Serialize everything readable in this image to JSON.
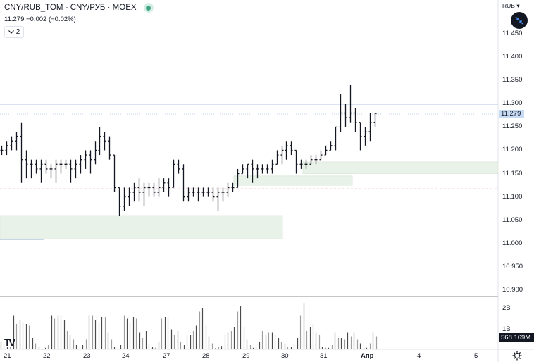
{
  "header": {
    "title": "CNY/RUB_TOM - CNY/РУБ · MOEX",
    "price": "11.279",
    "change": "−0.002 (−0.02%)",
    "collapse_count": "2"
  },
  "price_scale": {
    "currency": "RUB",
    "labels": [
      "11.450",
      "11.400",
      "11.350",
      "11.300",
      "11.250",
      "11.200",
      "11.150",
      "11.100",
      "11.050",
      "11.000",
      "10.950",
      "10.900"
    ],
    "current_price": "11.279"
  },
  "volume_scale": {
    "labels": [
      "2B",
      "1B"
    ],
    "current_volume": "568.169M"
  },
  "time_scale": {
    "labels": [
      "21",
      "22",
      "23",
      "24",
      "27",
      "28",
      "29",
      "30",
      "31",
      "Апр",
      "4",
      "5"
    ]
  },
  "icons": {
    "autofit": "autoscale-arrows-icon",
    "settings": "gear-icon",
    "logo": "TV"
  },
  "colors": {
    "bar": "#131722",
    "zone": "#e9f2e8",
    "current_price_line": "#b2c6e0",
    "status_dot": "#42a382",
    "volume_dark": "#4a4a4a",
    "volume_light": "#9e9e9e"
  },
  "chart_data": [
    {
      "type": "ohlc",
      "title": "CNY/RUB_TOM - CNY/РУБ · MOEX",
      "xlabel": "",
      "ylabel": "RUB",
      "ylim": [
        10.9,
        11.45
      ],
      "x": [
        "21",
        "22",
        "23",
        "24",
        "27",
        "28",
        "29",
        "30",
        "31",
        "Апр",
        "4",
        "5"
      ],
      "last_price": 11.279,
      "change": -0.002,
      "change_pct": -0.02,
      "zones": [
        {
          "from": 11.01,
          "to": 11.06,
          "x_start": "21",
          "x_end": "29.8"
        },
        {
          "from": 11.125,
          "to": 11.145,
          "x_start": "28.6",
          "x_end": "31.2"
        },
        {
          "from": 11.15,
          "to": 11.175,
          "x_start": "30.4",
          "x_end": "5"
        }
      ],
      "series": [
        {
          "name": "price",
          "values": [
            [
              11.2,
              11.21,
              11.19,
              11.2
            ],
            [
              11.2,
              11.22,
              11.19,
              11.21
            ],
            [
              11.21,
              11.23,
              11.2,
              11.22
            ],
            [
              11.22,
              11.24,
              11.2,
              11.23
            ],
            [
              11.23,
              11.26,
              11.13,
              11.18
            ],
            [
              11.18,
              11.2,
              11.14,
              11.17
            ],
            [
              11.17,
              11.18,
              11.14,
              11.17
            ],
            [
              11.17,
              11.18,
              11.15,
              11.16
            ],
            [
              11.16,
              11.18,
              11.13,
              11.17
            ],
            [
              11.17,
              11.18,
              11.15,
              11.16
            ],
            [
              11.16,
              11.17,
              11.14,
              11.16
            ],
            [
              11.16,
              11.18,
              11.13,
              11.17
            ],
            [
              11.17,
              11.18,
              11.15,
              11.17
            ],
            [
              11.17,
              11.18,
              11.16,
              11.17
            ],
            [
              11.17,
              11.18,
              11.13,
              11.16
            ],
            [
              11.16,
              11.18,
              11.14,
              11.17
            ],
            [
              11.17,
              11.19,
              11.15,
              11.18
            ],
            [
              11.18,
              11.2,
              11.16,
              11.19
            ],
            [
              11.19,
              11.2,
              11.15,
              11.18
            ],
            [
              11.18,
              11.22,
              11.17,
              11.2
            ],
            [
              11.2,
              11.25,
              11.19,
              11.23
            ],
            [
              11.23,
              11.24,
              11.2,
              11.22
            ],
            [
              11.22,
              11.23,
              11.18,
              11.19
            ],
            [
              11.19,
              11.19,
              11.11,
              11.12
            ],
            [
              11.12,
              11.12,
              11.06,
              11.08
            ],
            [
              11.08,
              11.12,
              11.07,
              11.1
            ],
            [
              11.1,
              11.12,
              11.08,
              11.11
            ],
            [
              11.11,
              11.13,
              11.09,
              11.12
            ],
            [
              11.12,
              11.14,
              11.09,
              11.11
            ],
            [
              11.11,
              11.13,
              11.08,
              11.12
            ],
            [
              11.12,
              11.13,
              11.1,
              11.12
            ],
            [
              11.12,
              11.13,
              11.1,
              11.11
            ],
            [
              11.11,
              11.14,
              11.1,
              11.12
            ],
            [
              11.12,
              11.14,
              11.11,
              11.13
            ],
            [
              11.13,
              11.14,
              11.1,
              11.12
            ],
            [
              11.12,
              11.18,
              11.13,
              11.17
            ],
            [
              11.17,
              11.18,
              11.15,
              11.16
            ],
            [
              11.16,
              11.17,
              11.09,
              11.1
            ],
            [
              11.1,
              11.12,
              11.09,
              11.11
            ],
            [
              11.11,
              11.12,
              11.1,
              11.11
            ],
            [
              11.11,
              11.12,
              11.09,
              11.11
            ],
            [
              11.11,
              11.12,
              11.1,
              11.11
            ],
            [
              11.11,
              11.12,
              11.1,
              11.11
            ],
            [
              11.11,
              11.12,
              11.09,
              11.1
            ],
            [
              11.1,
              11.12,
              11.07,
              11.11
            ],
            [
              11.11,
              11.12,
              11.09,
              11.11
            ],
            [
              11.11,
              11.13,
              11.1,
              11.12
            ],
            [
              11.12,
              11.13,
              11.11,
              11.12
            ],
            [
              11.12,
              11.16,
              11.14,
              11.15
            ],
            [
              11.15,
              11.17,
              11.15,
              11.16
            ],
            [
              11.16,
              11.17,
              11.14,
              11.17
            ],
            [
              11.17,
              11.18,
              11.13,
              11.16
            ],
            [
              11.16,
              11.17,
              11.14,
              11.16
            ],
            [
              11.16,
              11.17,
              11.15,
              11.16
            ],
            [
              11.16,
              11.17,
              11.15,
              11.16
            ],
            [
              11.16,
              11.18,
              11.15,
              11.17
            ],
            [
              11.17,
              11.2,
              11.17,
              11.19
            ],
            [
              11.19,
              11.21,
              11.17,
              11.2
            ],
            [
              11.2,
              11.22,
              11.18,
              11.21
            ],
            [
              11.21,
              11.22,
              11.19,
              11.2
            ],
            [
              11.2,
              11.17,
              11.15,
              11.17
            ],
            [
              11.17,
              11.18,
              11.16,
              11.17
            ],
            [
              11.17,
              11.18,
              11.16,
              11.17
            ],
            [
              11.17,
              11.19,
              11.17,
              11.18
            ],
            [
              11.18,
              11.19,
              11.17,
              11.18
            ],
            [
              11.18,
              11.2,
              11.18,
              11.19
            ],
            [
              11.19,
              11.21,
              11.19,
              11.2
            ],
            [
              11.2,
              11.22,
              11.2,
              11.21
            ],
            [
              11.21,
              11.25,
              11.2,
              11.25
            ],
            [
              11.25,
              11.32,
              11.24,
              11.28
            ],
            [
              11.28,
              11.3,
              11.25,
              11.27
            ],
            [
              11.27,
              11.34,
              11.26,
              11.28
            ],
            [
              11.28,
              11.29,
              11.24,
              11.26
            ],
            [
              11.26,
              11.24,
              11.2,
              11.23
            ],
            [
              11.23,
              11.25,
              11.21,
              11.24
            ],
            [
              11.24,
              11.28,
              11.22,
              11.26
            ],
            [
              11.26,
              11.28,
              11.25,
              11.279
            ]
          ]
        }
      ],
      "volume_ylim": [
        0,
        2.5
      ],
      "volume_unit": "B"
    }
  ]
}
